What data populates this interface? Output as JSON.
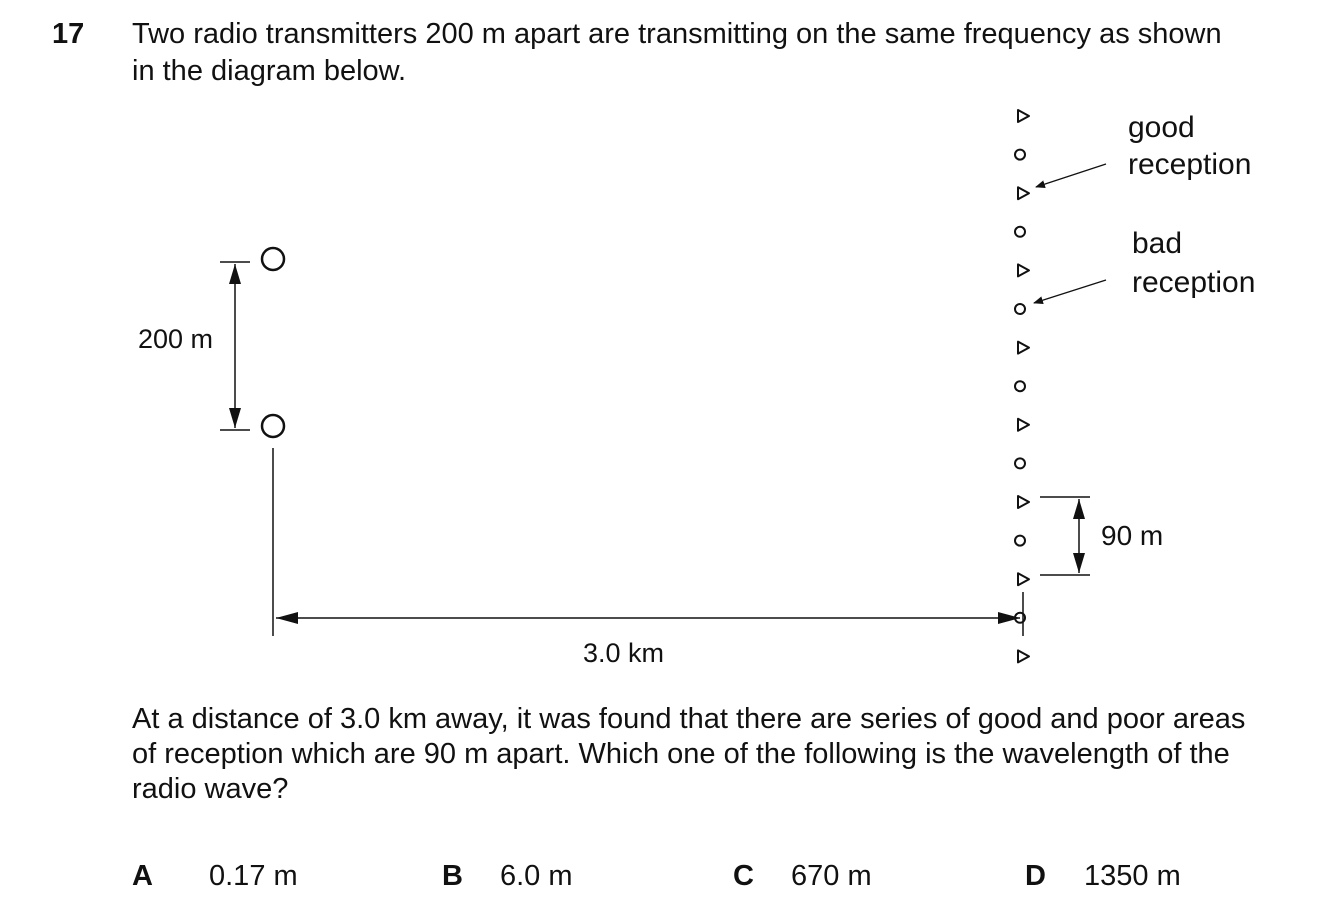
{
  "question": {
    "number": "17",
    "intro_lines": [
      "Two radio transmitters 200 m apart are transmitting on the same frequency as shown",
      "in the diagram below."
    ],
    "body_lines": [
      "At a distance of 3.0 km away, it was found that there are series of good and poor areas",
      "of reception which are 90 m apart. Which one of the following is the wavelength of the",
      "radio wave?"
    ]
  },
  "diagram": {
    "separation_label": "200 m",
    "distance_label": "3.0 km",
    "spacing_label": "90 m",
    "good_label_lines": [
      "good",
      "reception"
    ],
    "bad_label_lines": [
      "bad",
      "reception"
    ],
    "pattern": [
      "good",
      "bad",
      "good",
      "bad",
      "good",
      "bad",
      "good",
      "bad",
      "good",
      "bad",
      "good",
      "bad",
      "good",
      "bad",
      "good"
    ],
    "line_color": "#111111"
  },
  "options": [
    {
      "letter": "A",
      "value": "0.17 m"
    },
    {
      "letter": "B",
      "value": "6.0 m"
    },
    {
      "letter": "C",
      "value": "670 m"
    },
    {
      "letter": "D",
      "value": "1350 m"
    }
  ]
}
